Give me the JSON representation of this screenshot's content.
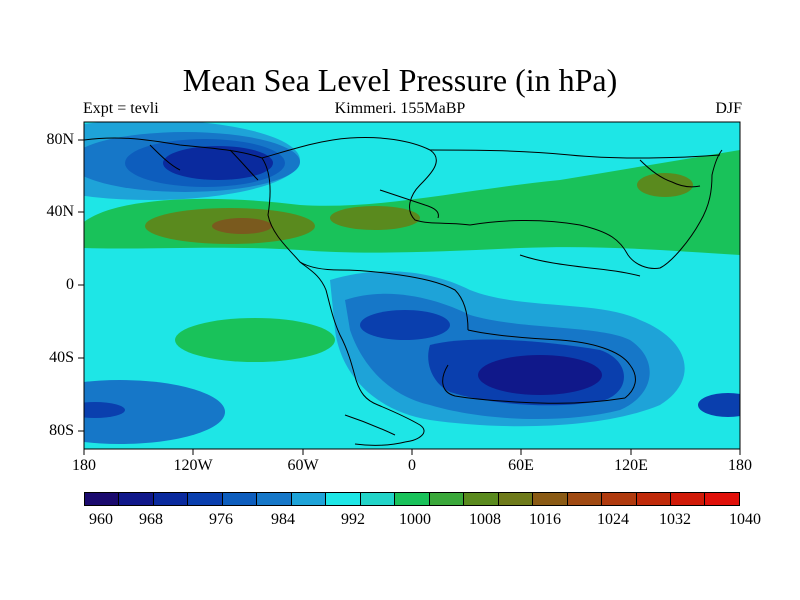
{
  "title": "Mean Sea Level Pressure (in hPa)",
  "subtitle_left": "Expt = tevli",
  "subtitle_center": "Kimmeri. 155MaBP",
  "subtitle_right": "DJF",
  "lat_labels": [
    "80N",
    "40N",
    "0",
    "40S",
    "80S"
  ],
  "lon_labels": [
    "180",
    "120W",
    "60W",
    "0",
    "60E",
    "120E",
    "180"
  ],
  "colorbar_labels": [
    "960",
    "968",
    "976",
    "984",
    "992",
    "1000",
    "1008",
    "1016",
    "1024",
    "1032",
    "1040"
  ],
  "colorbar_colors": [
    "#1a0a6e",
    "#10188a",
    "#0a2a9e",
    "#0a3fae",
    "#0d5dbd",
    "#1677c8",
    "#1ea3d8",
    "#1ee6e6",
    "#22d4c8",
    "#19c25a",
    "#3aa83a",
    "#5a8a1e",
    "#6e7a1a",
    "#8a5a14",
    "#a04a12",
    "#b03a0e",
    "#c02a0a",
    "#d01a08",
    "#e0100a"
  ],
  "colors": {
    "ocean_base": "#1ee6e6",
    "low_deep": "#10188a",
    "low_mid": "#0a3fae",
    "low_light": "#1677c8",
    "low_pale": "#1ea3d8",
    "high_green": "#19c25a",
    "high_olive": "#5a8a1e",
    "high_brown": "#7a5a1e",
    "coast": "#000000"
  }
}
